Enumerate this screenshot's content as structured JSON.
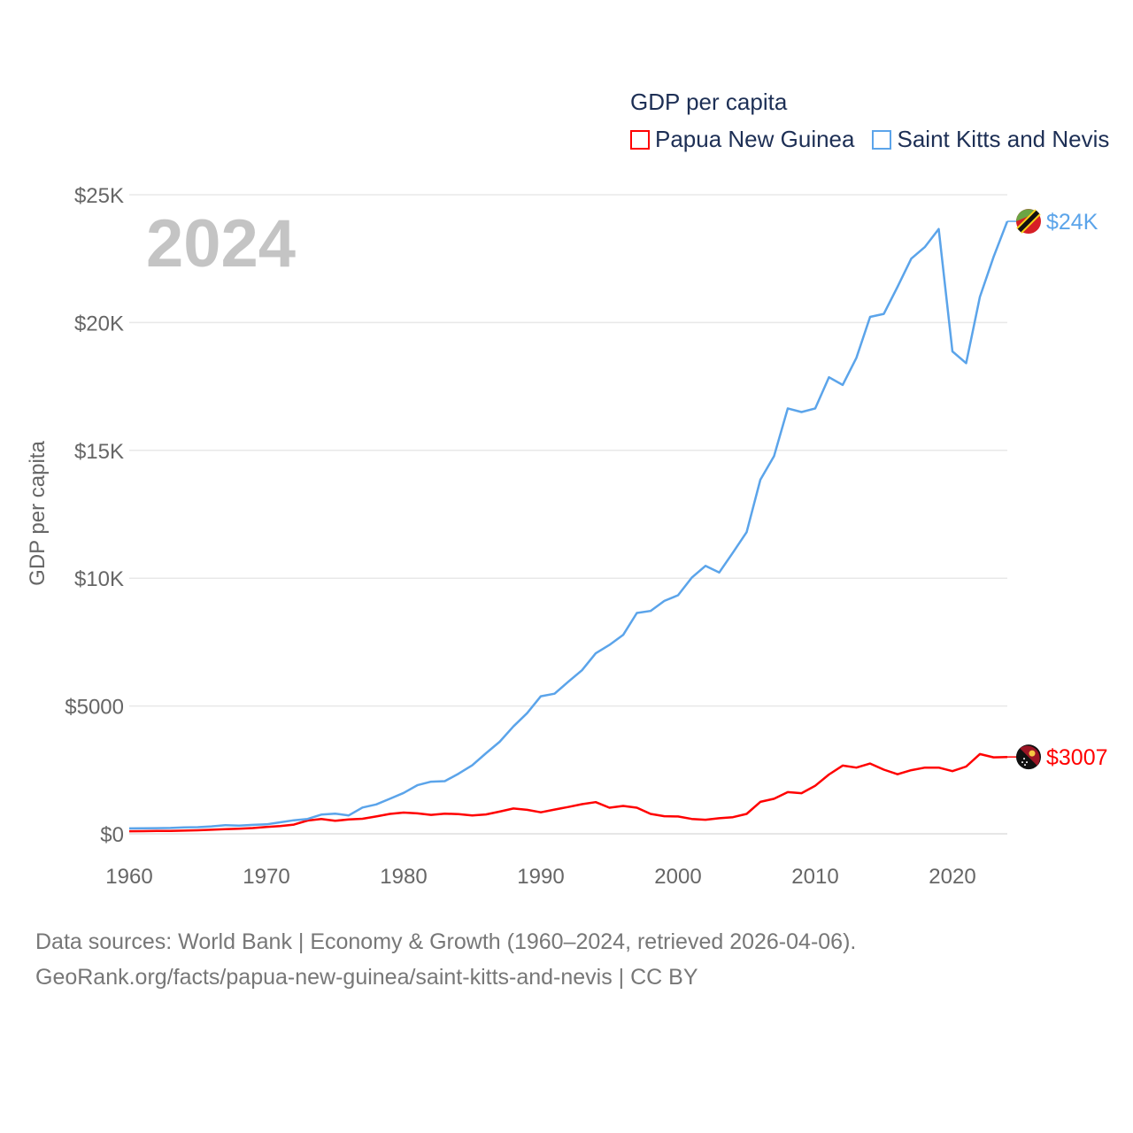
{
  "chart_data": {
    "type": "line",
    "title": "GDP per capita",
    "xlabel": "",
    "ylabel": "GDP per capita",
    "xlim": [
      1960,
      2024
    ],
    "ylim": [
      0,
      25000
    ],
    "grid": true,
    "legend_placement": "top-right",
    "year_watermark": "2024",
    "x_ticks": [
      1960,
      1970,
      1980,
      1990,
      2000,
      2010,
      2020
    ],
    "x_tick_labels": [
      "1960",
      "1970",
      "1980",
      "1990",
      "2000",
      "2010",
      "2020"
    ],
    "y_ticks": [
      0,
      5000,
      10000,
      15000,
      20000,
      25000
    ],
    "y_tick_labels": [
      "$0",
      "$5000",
      "$10K",
      "$15K",
      "$20K",
      "$25K"
    ],
    "x": [
      1960,
      1961,
      1962,
      1963,
      1964,
      1965,
      1966,
      1967,
      1968,
      1969,
      1970,
      1971,
      1972,
      1973,
      1974,
      1975,
      1976,
      1977,
      1978,
      1979,
      1980,
      1981,
      1982,
      1983,
      1984,
      1985,
      1986,
      1987,
      1988,
      1989,
      1990,
      1991,
      1992,
      1993,
      1994,
      1995,
      1996,
      1997,
      1998,
      1999,
      2000,
      2001,
      2002,
      2003,
      2004,
      2005,
      2006,
      2007,
      2008,
      2009,
      2010,
      2011,
      2012,
      2013,
      2014,
      2015,
      2016,
      2017,
      2018,
      2019,
      2020,
      2021,
      2022,
      2023,
      2024
    ],
    "series": [
      {
        "name": "Papua New Guinea",
        "color": "#ff0000",
        "end_label": "$3007",
        "flag": "papua-new-guinea-flag",
        "values": [
          100,
          105,
          110,
          115,
          125,
          140,
          160,
          180,
          200,
          225,
          270,
          300,
          360,
          520,
          580,
          510,
          560,
          590,
          680,
          780,
          830,
          800,
          740,
          790,
          770,
          720,
          760,
          870,
          990,
          940,
          840,
          950,
          1050,
          1160,
          1240,
          1020,
          1090,
          1020,
          780,
          690,
          680,
          580,
          550,
          610,
          650,
          780,
          1250,
          1370,
          1630,
          1590,
          1880,
          2320,
          2670,
          2590,
          2750,
          2510,
          2330,
          2490,
          2590,
          2590,
          2450,
          2630,
          3120,
          2990,
          3007
        ]
      },
      {
        "name": "Saint Kitts and Nevis",
        "color": "#5ba4ea",
        "end_label": "$24K",
        "flag": "saint-kitts-and-nevis-flag",
        "values": [
          210,
          215,
          220,
          230,
          250,
          260,
          290,
          340,
          320,
          350,
          370,
          450,
          530,
          580,
          750,
          790,
          720,
          1030,
          1150,
          1370,
          1600,
          1900,
          2040,
          2060,
          2350,
          2680,
          3150,
          3600,
          4200,
          4720,
          5380,
          5480,
          5950,
          6400,
          7060,
          7390,
          7780,
          8640,
          8720,
          9110,
          9330,
          10020,
          10480,
          10220,
          11000,
          11800,
          13850,
          14780,
          16640,
          16500,
          16640,
          17860,
          17560,
          18620,
          20220,
          20340,
          21400,
          22500,
          22960,
          23660,
          18870,
          18410,
          21000,
          22570,
          23960
        ]
      }
    ]
  },
  "footer": {
    "line1": "Data sources: World Bank | Economy & Growth (1960–2024, retrieved 2026-04-06).",
    "line2": "GeoRank.org/facts/papua-new-guinea/saint-kitts-and-nevis | CC BY"
  }
}
